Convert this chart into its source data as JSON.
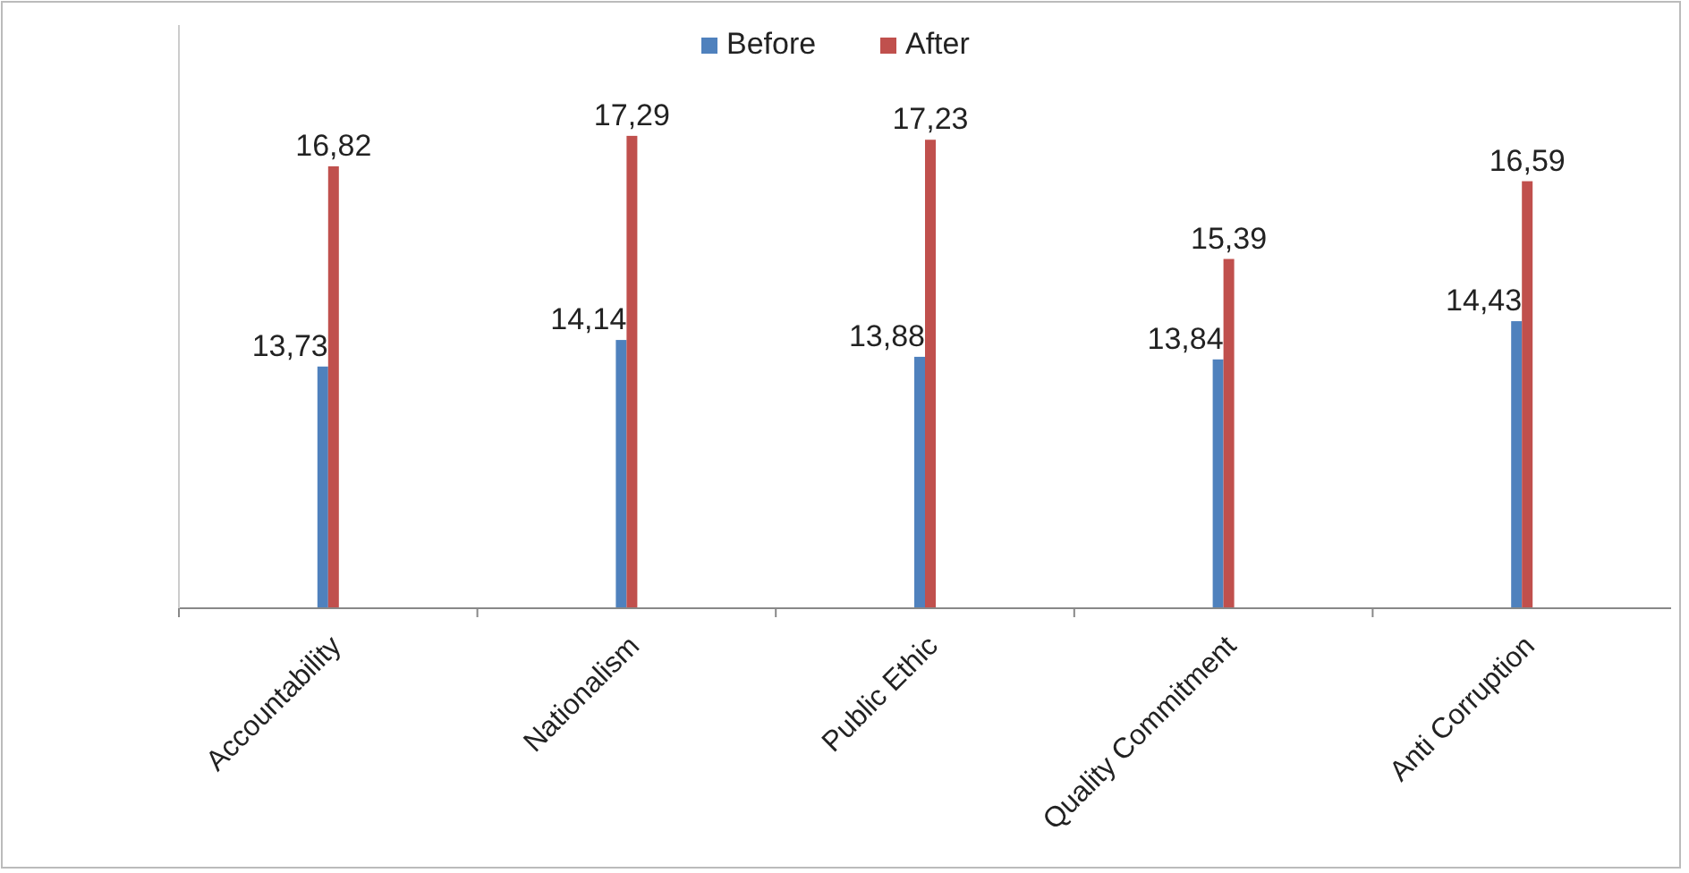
{
  "chart_data": {
    "type": "bar",
    "categories": [
      "Accountability",
      "Nationalism",
      "Public Ethic",
      "Quality Commitment",
      "Anti Corruption"
    ],
    "series": [
      {
        "name": "Before",
        "color": "#4f81bd",
        "values": [
          13.73,
          14.14,
          13.88,
          13.84,
          14.43
        ],
        "value_labels": [
          "13,73",
          "14,14",
          "13,88",
          "13,84",
          "14,43"
        ]
      },
      {
        "name": "After",
        "color": "#c0504d",
        "values": [
          16.82,
          17.29,
          17.23,
          15.39,
          16.59
        ],
        "value_labels": [
          "16,82",
          "17,29",
          "17,23",
          "15,39",
          "16,59"
        ]
      }
    ],
    "ylim": [
      10,
      19
    ],
    "tick_labels": "x",
    "legend": "top",
    "grid": false
  }
}
